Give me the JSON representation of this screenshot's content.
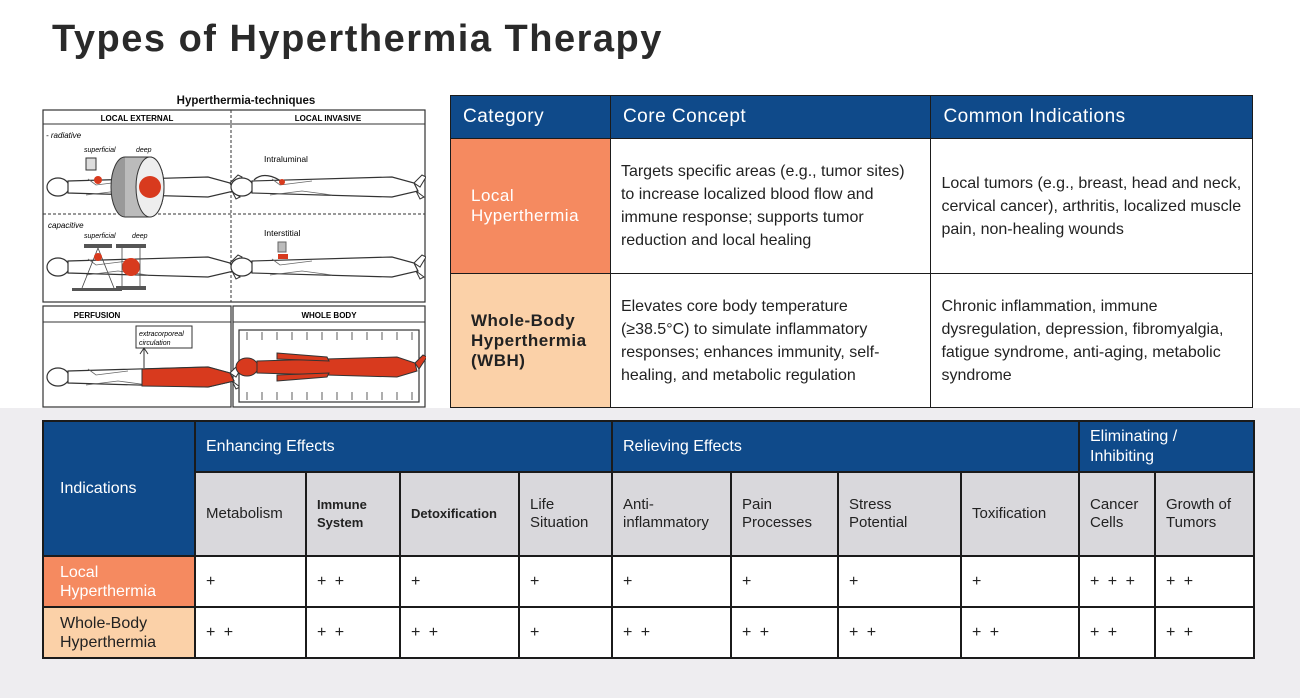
{
  "title": "Types of Hyperthermia Therapy",
  "diagram": {
    "heading": "Hyperthermia-techniques",
    "panels": {
      "local_external": "LOCAL EXTERNAL",
      "local_invasive": "LOCAL INVASIVE",
      "perfusion": "PERFUSION",
      "whole_body": "WHOLE BODY"
    },
    "labels": {
      "radiative": "- radiative",
      "superficial1": "superficial",
      "deep1": "deep",
      "capacitive": "capacitive",
      "superficial2": "superficial",
      "deep2": "deep",
      "intraluminal": "Intraluminal",
      "interstitial": "Interstitial",
      "extracorporeal": "extracorporeal",
      "circulation": "circulation"
    }
  },
  "types_table": {
    "headers": [
      "Category",
      "Core Concept",
      "Common Indications"
    ],
    "rows": [
      {
        "category": "Local Hyperthermia",
        "concept": "Targets specific areas (e.g., tumor sites) to increase localized blood flow and immune response; supports tumor reduction and local healing",
        "indications": "Local tumors (e.g., breast, head and neck, cervical cancer), arthritis, localized muscle pain, non-healing wounds"
      },
      {
        "category": "Whole-Body Hyperthermia (WBH)",
        "concept": "Elevates core body temperature (≥38.5°C) to simulate inflammatory responses; enhances immunity, self-healing, and metabolic regulation",
        "indications": "Chronic inflammation, immune dysregulation, depression, fibromyalgia, fatigue syndrome, anti-aging, metabolic syndrome"
      }
    ]
  },
  "effects_table": {
    "indications_label": "Indications",
    "groups": [
      "Enhancing Effects",
      "Relieving Effects",
      "Eliminating / Inhibiting"
    ],
    "columns": [
      "Metabolism",
      "Immune System",
      "Detoxification",
      "Life Situation",
      "Anti-inflammatory",
      "Pain Processes",
      "Stress Potential",
      "Toxification",
      "Cancer Cells",
      "Growth of Tumors"
    ],
    "rows": [
      {
        "label": "Local Hyperthermia",
        "values": [
          "+",
          "+ +",
          "+",
          "+",
          "+",
          "+",
          "+",
          "+",
          "+ + +",
          "+ +"
        ]
      },
      {
        "label": "Whole-Body Hyperthermia",
        "values": [
          "+ +",
          "+ +",
          "+ +",
          "+",
          "+ +",
          "+ +",
          "+ +",
          "+ +",
          "+ +",
          "+ +"
        ]
      }
    ]
  },
  "colors": {
    "header_blue": "#0f4a8a",
    "local_orange": "#f58a60",
    "wbh_peach": "#fbd1a8",
    "subheader_gray": "#d9d8dc",
    "body_red": "#d83a1e"
  }
}
